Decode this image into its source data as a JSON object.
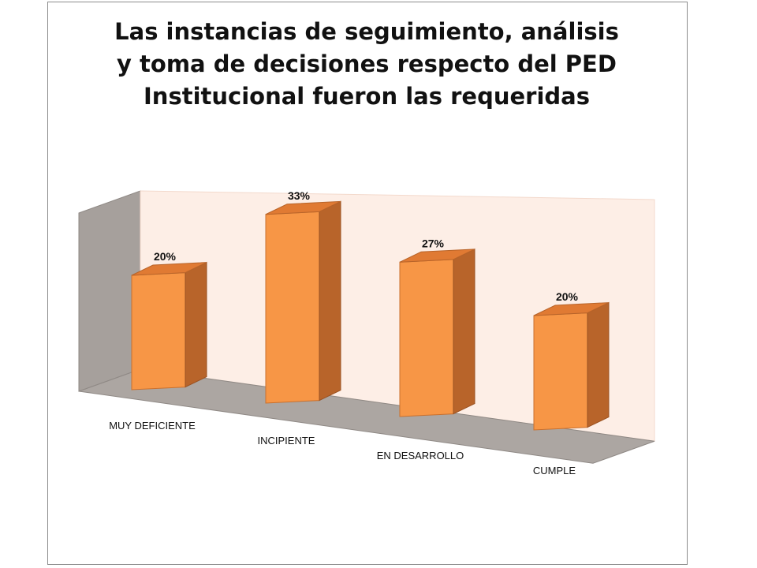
{
  "chart_data": {
    "type": "bar",
    "title_lines": [
      "Las instancias de seguimiento, análisis",
      "y toma de decisiones respecto del PED",
      "Institucional fueron las requeridas"
    ],
    "categories": [
      "MUY DEFICIENTE",
      "INCIPIENTE",
      "EN DESARROLLO",
      "CUMPLE"
    ],
    "values": [
      20,
      33,
      27,
      20
    ],
    "value_labels": [
      "20%",
      "33%",
      "27%",
      "20%"
    ],
    "ylim": [
      0,
      40
    ],
    "style": "3d-column",
    "grid": false,
    "legend": "none",
    "colors": {
      "bar_front": "#f79646",
      "bar_side": "#b8642a",
      "bar_top": "#e07a33",
      "back_wall": "#fdeee6",
      "side_wall": "#a6a09c",
      "floor": "#aca6a2"
    }
  }
}
